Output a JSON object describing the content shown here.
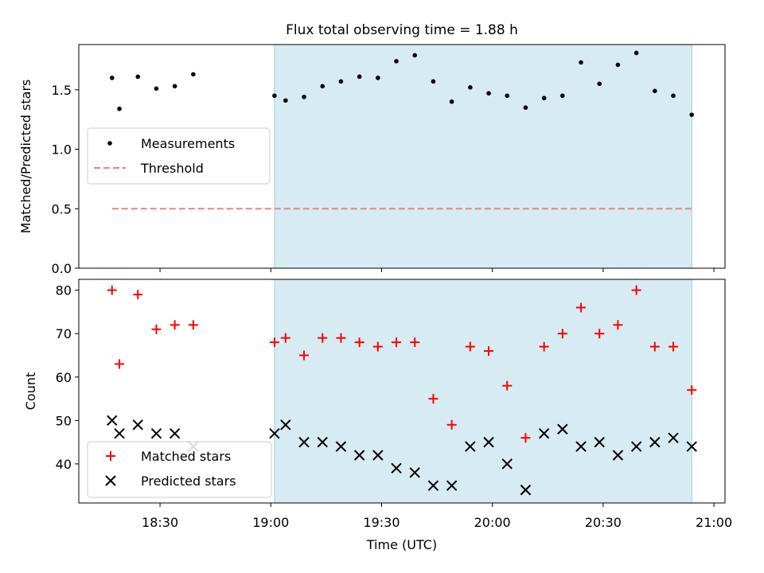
{
  "chart_data": [
    {
      "type": "scatter",
      "title": "Flux total observing time = 1.88 h",
      "ylabel": "Matched/Predicted stars",
      "xlabel": "",
      "xlim": [
        "18:08",
        "21:03"
      ],
      "ylim": [
        0,
        1.88
      ],
      "yticks": [
        0.0,
        0.5,
        1.0,
        1.5
      ],
      "ytick_labels": [
        "0.0",
        "0.5",
        "1.0",
        "1.5"
      ],
      "shaded_span": [
        "19:01",
        "20:54"
      ],
      "legend": {
        "placement": "center-left",
        "entries": [
          "Measurements",
          "Threshold"
        ]
      },
      "series": [
        {
          "name": "Measurements",
          "marker": "dot",
          "color": "#000000",
          "x": [
            "18:17",
            "18:19",
            "18:24",
            "18:29",
            "18:34",
            "18:39",
            "19:01",
            "19:04",
            "19:09",
            "19:14",
            "19:19",
            "19:24",
            "19:29",
            "19:34",
            "19:39",
            "19:44",
            "19:49",
            "19:54",
            "19:59",
            "20:04",
            "20:09",
            "20:14",
            "20:19",
            "20:24",
            "20:29",
            "20:34",
            "20:39",
            "20:44",
            "20:49",
            "20:54"
          ],
          "values": [
            1.6,
            1.34,
            1.61,
            1.51,
            1.53,
            1.63,
            1.45,
            1.41,
            1.44,
            1.53,
            1.57,
            1.61,
            1.6,
            1.74,
            1.79,
            1.57,
            1.4,
            1.52,
            1.47,
            1.45,
            1.35,
            1.43,
            1.45,
            1.73,
            1.55,
            1.71,
            1.81,
            1.49,
            1.45,
            1.29
          ]
        },
        {
          "name": "Threshold",
          "style": "dashed",
          "color": "#f08080",
          "x": [
            "18:17",
            "20:54"
          ],
          "values": [
            0.5,
            0.5
          ]
        }
      ]
    },
    {
      "type": "scatter",
      "title": "",
      "ylabel": "Count",
      "xlabel": "Time (UTC)",
      "xlim": [
        "18:08",
        "21:03"
      ],
      "ylim": [
        31,
        82.5
      ],
      "yticks": [
        40,
        50,
        60,
        70,
        80
      ],
      "ytick_labels": [
        "40",
        "50",
        "60",
        "70",
        "80"
      ],
      "xticks": [
        "18:30",
        "19:00",
        "19:30",
        "20:00",
        "20:30",
        "21:00"
      ],
      "xtick_labels": [
        "18:30",
        "19:00",
        "19:30",
        "20:00",
        "20:30",
        "21:00"
      ],
      "shaded_span": [
        "19:01",
        "20:54"
      ],
      "legend": {
        "placement": "lower-left",
        "entries": [
          "Matched stars",
          "Predicted stars"
        ]
      },
      "series": [
        {
          "name": "Matched stars",
          "marker": "plus",
          "color": "#ff0000",
          "x": [
            "18:17",
            "18:19",
            "18:24",
            "18:29",
            "18:34",
            "18:39",
            "19:01",
            "19:04",
            "19:09",
            "19:14",
            "19:19",
            "19:24",
            "19:29",
            "19:34",
            "19:39",
            "19:44",
            "19:49",
            "19:54",
            "19:59",
            "20:04",
            "20:09",
            "20:14",
            "20:19",
            "20:24",
            "20:29",
            "20:34",
            "20:39",
            "20:44",
            "20:49",
            "20:54"
          ],
          "values": [
            80,
            63,
            79,
            71,
            72,
            72,
            68,
            69,
            65,
            69,
            69,
            68,
            67,
            68,
            68,
            55,
            49,
            67,
            66,
            58,
            46,
            67,
            70,
            76,
            70,
            72,
            80,
            67,
            67,
            57
          ]
        },
        {
          "name": "Predicted stars",
          "marker": "x",
          "color": "#000000",
          "x": [
            "18:17",
            "18:19",
            "18:24",
            "18:29",
            "18:34",
            "18:39",
            "19:01",
            "19:04",
            "19:09",
            "19:14",
            "19:19",
            "19:24",
            "19:29",
            "19:34",
            "19:39",
            "19:44",
            "19:49",
            "19:54",
            "19:59",
            "20:04",
            "20:09",
            "20:14",
            "20:19",
            "20:24",
            "20:29",
            "20:34",
            "20:39",
            "20:44",
            "20:49",
            "20:54"
          ],
          "values": [
            50,
            47,
            49,
            47,
            47,
            44,
            47,
            49,
            45,
            45,
            44,
            42,
            42,
            39,
            38,
            35,
            35,
            44,
            45,
            40,
            34,
            47,
            48,
            44,
            45,
            42,
            44,
            45,
            46,
            44
          ]
        }
      ]
    }
  ]
}
